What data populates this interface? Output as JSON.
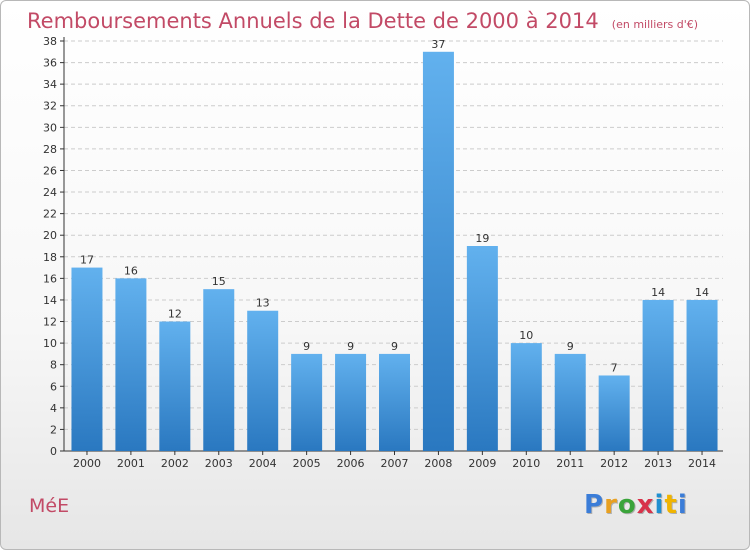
{
  "title": "Remboursements Annuels de la Dette de 2000 à 2014",
  "subtitle": "(en milliers d'€)",
  "commune": "MéE",
  "logo": {
    "text": "Proxiti",
    "letters": [
      "P",
      "r",
      "o",
      "x",
      "i",
      "t",
      "i"
    ]
  },
  "colors": {
    "title": "#c24a66",
    "bar_top": "#62b1ee",
    "bar_bottom": "#2a78c0",
    "grid": "#cccccc"
  },
  "chart_data": {
    "type": "bar",
    "title": "Remboursements Annuels de la Dette de 2000 à 2014",
    "subtitle": "(en milliers d'€)",
    "categories": [
      "2000",
      "2001",
      "2002",
      "2003",
      "2004",
      "2005",
      "2006",
      "2007",
      "2008",
      "2009",
      "2010",
      "2011",
      "2012",
      "2013",
      "2014"
    ],
    "values": [
      17,
      16,
      12,
      15,
      13,
      9,
      9,
      9,
      37,
      19,
      10,
      9,
      7,
      14,
      14
    ],
    "data_labels": [
      "17",
      "16",
      "12",
      "15",
      "13",
      "9",
      "9",
      "9",
      "37",
      "19",
      "10",
      "9",
      "7",
      "14",
      "14"
    ],
    "yticks": [
      0,
      2,
      4,
      6,
      8,
      10,
      12,
      14,
      16,
      18,
      20,
      22,
      24,
      26,
      28,
      30,
      32,
      34,
      36,
      38
    ],
    "ylim": [
      0,
      38
    ],
    "grid": true,
    "legend": "none"
  }
}
